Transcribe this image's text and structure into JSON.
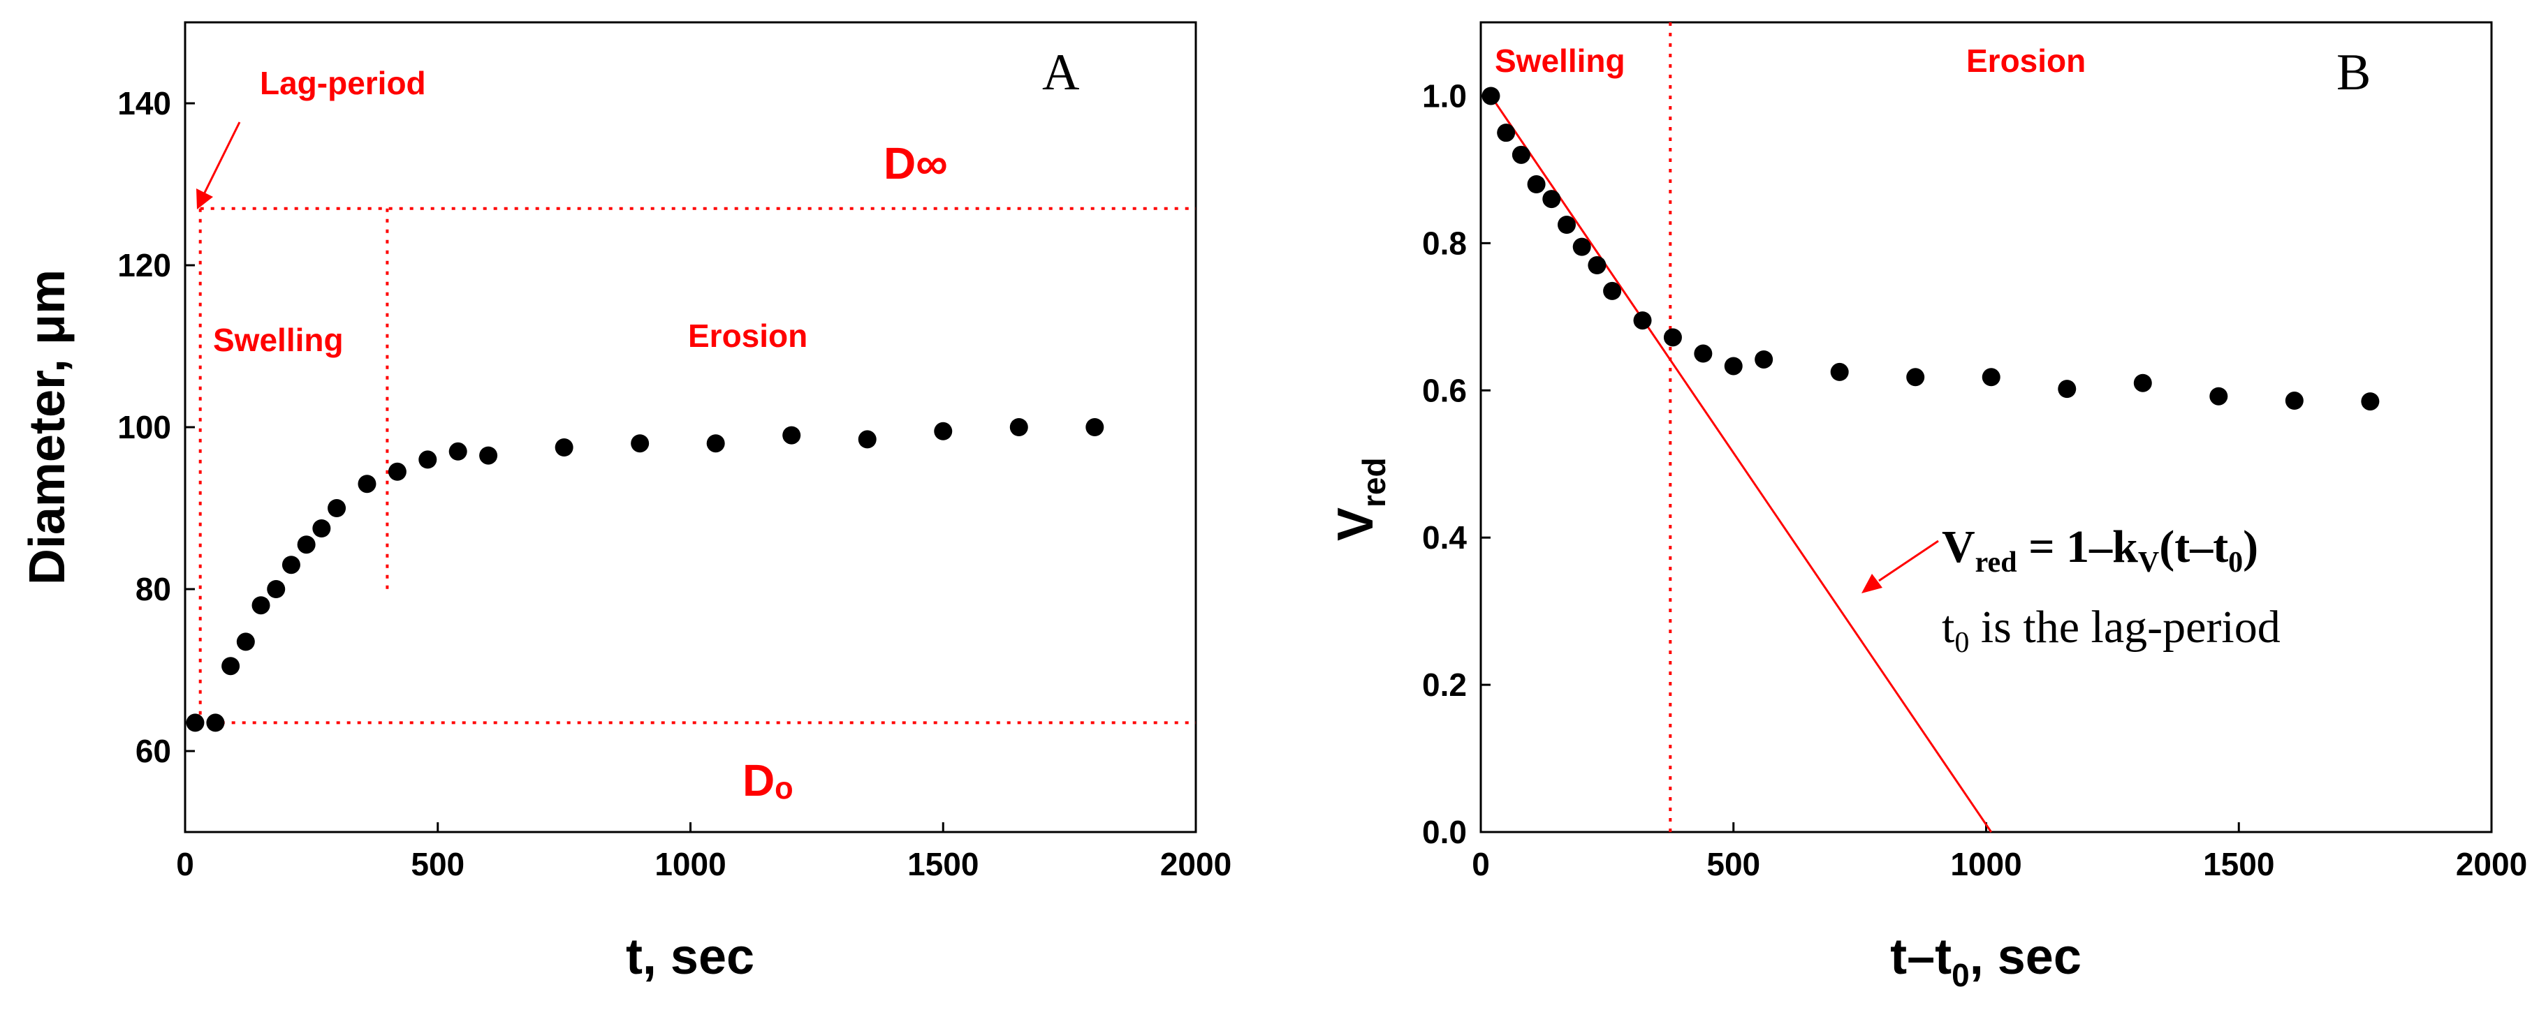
{
  "chart_data": [
    {
      "type": "scatter",
      "panel": "A",
      "xlabel": "t, sec",
      "ylabel": "Diameter, μm",
      "xlim": [
        0,
        2000
      ],
      "ylim": [
        50,
        150
      ],
      "xticks": [
        0,
        500,
        1000,
        1500,
        2000
      ],
      "yticks": [
        60,
        80,
        100,
        120,
        140
      ],
      "x": [
        20,
        60,
        90,
        120,
        150,
        180,
        210,
        240,
        270,
        300,
        360,
        420,
        480,
        540,
        600,
        750,
        900,
        1050,
        1200,
        1350,
        1500,
        1650,
        1800
      ],
      "y": [
        63.5,
        63.5,
        70.5,
        73.5,
        78,
        80,
        83,
        85.5,
        87.5,
        90,
        93,
        94.5,
        96,
        97,
        96.5,
        97.5,
        98,
        98,
        99,
        98.5,
        99.5,
        100,
        100
      ],
      "reference_lines": {
        "D_inf_y": 127,
        "D_0_y": 63.5,
        "lag_period_x": 30,
        "swelling_end_x": 400
      },
      "annotations": {
        "lag": "Lag-period",
        "swelling": "Swelling",
        "erosion": "Erosion",
        "d_inf": "D∞",
        "d_0": "Dₒ"
      }
    },
    {
      "type": "scatter",
      "panel": "B",
      "xlabel_main": "t–t",
      "xlabel_sub": "0",
      "xlabel_tail": ", sec",
      "ylabel_main": "V",
      "ylabel_sub": "red",
      "xlim": [
        0,
        2000
      ],
      "ylim": [
        0,
        1.1
      ],
      "xticks": [
        0,
        500,
        1000,
        1500,
        2000
      ],
      "yticks": [
        "0.0",
        "0.2",
        "0.4",
        "0.6",
        "0.8",
        "1.0"
      ],
      "x": [
        20,
        50,
        80,
        110,
        140,
        170,
        200,
        230,
        260,
        320,
        380,
        440,
        500,
        560,
        710,
        860,
        1010,
        1160,
        1310,
        1460,
        1610,
        1760
      ],
      "y": [
        1.0,
        0.95,
        0.92,
        0.88,
        0.86,
        0.825,
        0.795,
        0.77,
        0.735,
        0.695,
        0.672,
        0.65,
        0.633,
        0.642,
        0.625,
        0.618,
        0.618,
        0.602,
        0.61,
        0.592,
        0.586,
        0.585
      ],
      "fit_line": {
        "x": [
          20,
          1010
        ],
        "y": [
          1.0,
          0.0
        ]
      },
      "reference_lines": {
        "swelling_end_x": 375
      },
      "annotations": {
        "swelling": "Swelling",
        "erosion": "Erosion",
        "eq_v": "V",
        "eq_red": "red",
        "eq_mid": " = 1–k",
        "eq_kv": "V",
        "eq_paren_open": "(t–t",
        "eq_zero": "0",
        "eq_paren_close": ")",
        "t0": "t",
        "t0_sub": "0",
        "t0_text": " is the lag-period"
      }
    }
  ],
  "panel_letters": [
    "A",
    "B"
  ]
}
